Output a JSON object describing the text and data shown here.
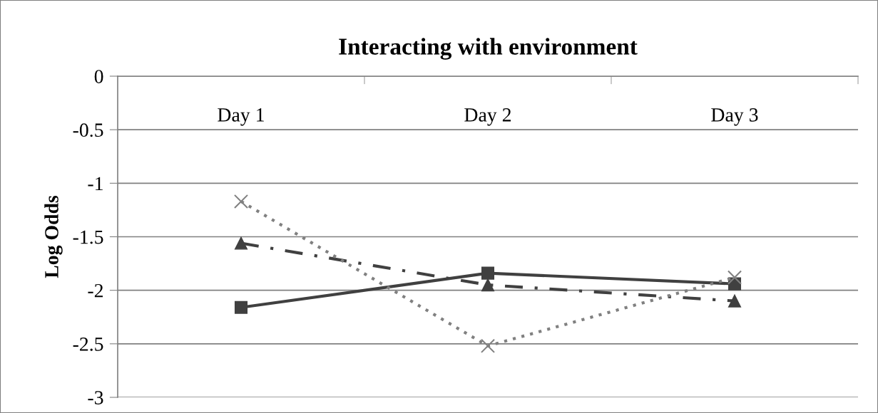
{
  "chart_data": {
    "type": "line",
    "title": "Interacting with environment",
    "ylabel": "Log Odds",
    "categories": [
      "Day 1",
      "Day 2",
      "Day 3"
    ],
    "series": [
      {
        "color": "#404040",
        "values": [
          -2.16,
          -1.84,
          -1.94
        ],
        "marker": "square",
        "line_style": "solid"
      },
      {
        "color": "#404040",
        "values": [
          -1.56,
          -1.95,
          -2.1
        ],
        "marker": "triangle",
        "line_style": "dashdot"
      },
      {
        "color": "#808080",
        "values": [
          -1.17,
          -2.52,
          -1.88
        ],
        "marker": "cross",
        "line_style": "dotted"
      }
    ],
    "ylim": [
      -3,
      0
    ],
    "yticks": [
      -3,
      -2.5,
      -2,
      -1.5,
      -1,
      -0.5,
      0
    ],
    "grid": "y",
    "legend": false
  }
}
